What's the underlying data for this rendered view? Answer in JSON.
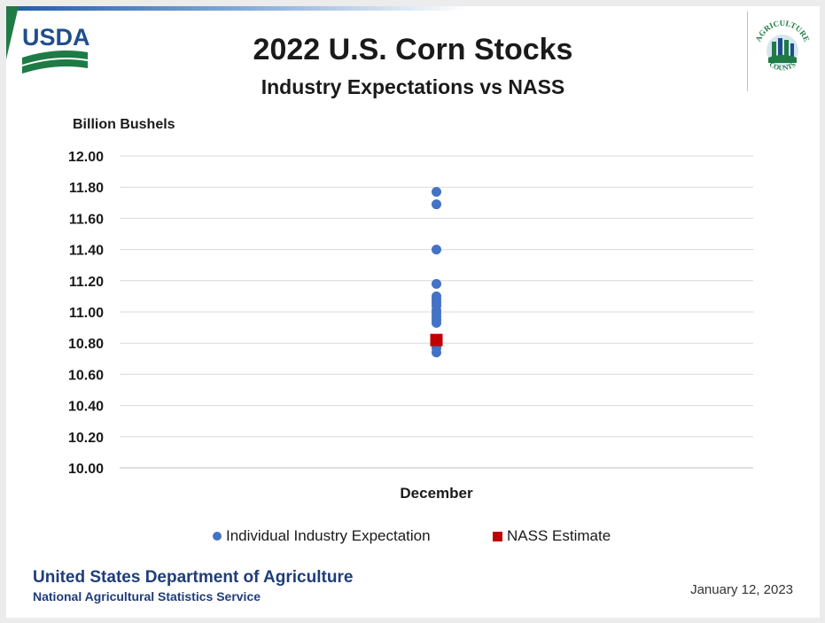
{
  "header": {
    "title": "2022 U.S. Corn Stocks",
    "subtitle": "Industry Expectations vs NASS",
    "logo_left_text": "USDA",
    "logo_right_text_top": "AGRICULTURE",
    "logo_right_text_bottom": "COUNTS"
  },
  "footer": {
    "org_name": "United States Department of Agriculture",
    "org_sub": "National Agricultural Statistics Service",
    "date": "January 12, 2023"
  },
  "colors": {
    "expectation": "#4472c4",
    "nass": "#c00000",
    "grid": "#d9d9d9",
    "usda_green": "#1e7b45",
    "usda_blue": "#1f4e8c"
  },
  "chart_data": {
    "type": "scatter",
    "ylabel": "Billion Bushels",
    "xlabel": "",
    "ylim": [
      10.0,
      12.0
    ],
    "yticks": [
      "12.00",
      "11.80",
      "11.60",
      "11.40",
      "11.20",
      "11.00",
      "10.80",
      "10.60",
      "10.40",
      "10.20",
      "10.00"
    ],
    "categories": [
      "December"
    ],
    "grid": true,
    "legend_position": "bottom",
    "series": [
      {
        "name": "Individual Industry Expectation",
        "marker": "circle",
        "values": [
          11.77,
          11.69,
          11.4,
          11.18,
          11.1,
          11.08,
          11.06,
          11.04,
          11.01,
          10.99,
          10.97,
          10.95,
          10.93,
          10.82,
          10.79,
          10.77,
          10.74
        ]
      },
      {
        "name": "NASS Estimate",
        "marker": "square",
        "values": [
          10.82
        ]
      }
    ]
  }
}
